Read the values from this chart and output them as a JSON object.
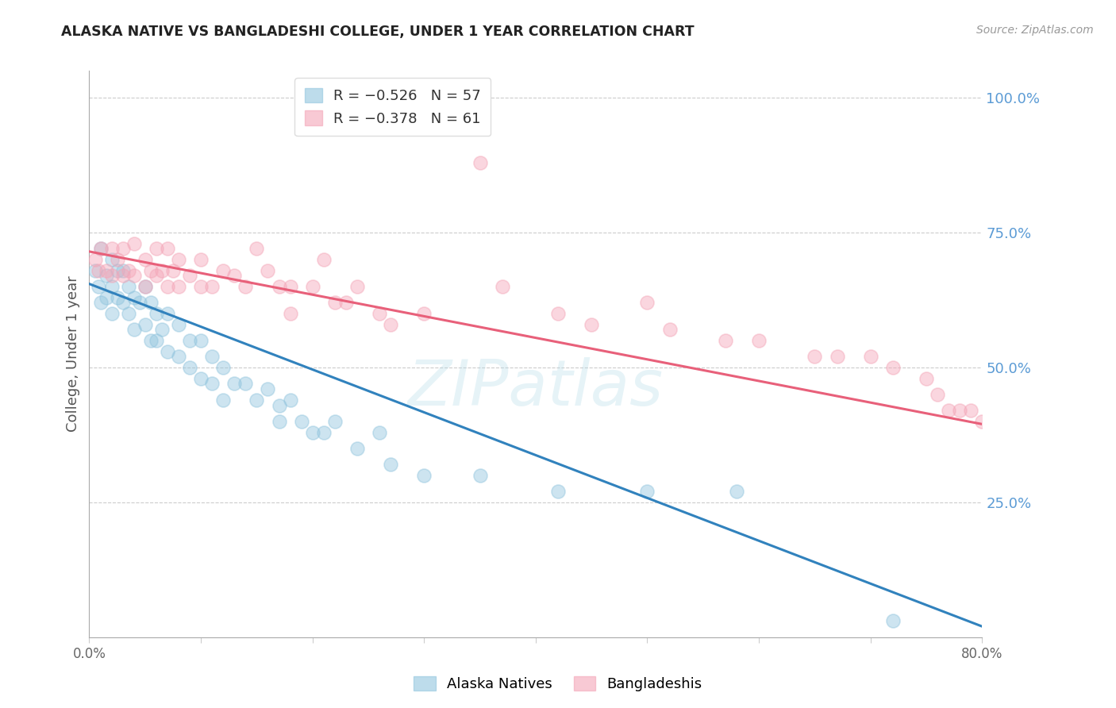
{
  "title": "ALASKA NATIVE VS BANGLADESHI COLLEGE, UNDER 1 YEAR CORRELATION CHART",
  "source": "Source: ZipAtlas.com",
  "ylabel": "College, Under 1 year",
  "xlim": [
    0.0,
    0.8
  ],
  "ylim": [
    0.0,
    1.05
  ],
  "x_tick_positions": [
    0.0,
    0.1,
    0.2,
    0.3,
    0.4,
    0.5,
    0.6,
    0.7,
    0.8
  ],
  "x_tick_labels": [
    "0.0%",
    "",
    "",
    "",
    "",
    "",
    "",
    "",
    "80.0%"
  ],
  "y_ticks_right": [
    1.0,
    0.75,
    0.5,
    0.25
  ],
  "y_tick_labels_right": [
    "100.0%",
    "75.0%",
    "50.0%",
    "25.0%"
  ],
  "watermark": "ZIPatlas",
  "blue_color": "#92c5de",
  "pink_color": "#f4a6b8",
  "blue_line_color": "#3182bd",
  "pink_line_color": "#e8607a",
  "bg_color": "#ffffff",
  "grid_color": "#cccccc",
  "right_tick_color": "#5b9bd5",
  "legend_label_blue": "R = −0.526   N = 57",
  "legend_label_pink": "R = −0.378   N = 61",
  "legend_bottom_blue": "Alaska Natives",
  "legend_bottom_pink": "Bangladeshis",
  "blue_trendline_x": [
    0.0,
    0.8
  ],
  "blue_trendline_y": [
    0.655,
    0.02
  ],
  "pink_trendline_x": [
    0.0,
    0.8
  ],
  "pink_trendline_y": [
    0.715,
    0.395
  ],
  "alaska_scatter_x": [
    0.005,
    0.008,
    0.01,
    0.01,
    0.015,
    0.015,
    0.02,
    0.02,
    0.02,
    0.025,
    0.025,
    0.03,
    0.03,
    0.035,
    0.035,
    0.04,
    0.04,
    0.045,
    0.05,
    0.05,
    0.055,
    0.055,
    0.06,
    0.06,
    0.065,
    0.07,
    0.07,
    0.08,
    0.08,
    0.09,
    0.09,
    0.1,
    0.1,
    0.11,
    0.11,
    0.12,
    0.12,
    0.13,
    0.14,
    0.15,
    0.16,
    0.17,
    0.17,
    0.18,
    0.19,
    0.2,
    0.21,
    0.22,
    0.24,
    0.26,
    0.27,
    0.3,
    0.35,
    0.42,
    0.5,
    0.58,
    0.72
  ],
  "alaska_scatter_y": [
    0.68,
    0.65,
    0.72,
    0.62,
    0.67,
    0.63,
    0.7,
    0.65,
    0.6,
    0.68,
    0.63,
    0.68,
    0.62,
    0.65,
    0.6,
    0.63,
    0.57,
    0.62,
    0.65,
    0.58,
    0.62,
    0.55,
    0.6,
    0.55,
    0.57,
    0.6,
    0.53,
    0.58,
    0.52,
    0.55,
    0.5,
    0.55,
    0.48,
    0.52,
    0.47,
    0.5,
    0.44,
    0.47,
    0.47,
    0.44,
    0.46,
    0.43,
    0.4,
    0.44,
    0.4,
    0.38,
    0.38,
    0.4,
    0.35,
    0.38,
    0.32,
    0.3,
    0.3,
    0.27,
    0.27,
    0.27,
    0.03
  ],
  "bangladeshi_scatter_x": [
    0.005,
    0.008,
    0.01,
    0.015,
    0.02,
    0.02,
    0.025,
    0.03,
    0.03,
    0.035,
    0.04,
    0.04,
    0.05,
    0.05,
    0.055,
    0.06,
    0.06,
    0.065,
    0.07,
    0.07,
    0.075,
    0.08,
    0.08,
    0.09,
    0.1,
    0.1,
    0.11,
    0.12,
    0.13,
    0.14,
    0.15,
    0.16,
    0.17,
    0.18,
    0.18,
    0.2,
    0.21,
    0.22,
    0.23,
    0.24,
    0.26,
    0.27,
    0.3,
    0.35,
    0.37,
    0.42,
    0.45,
    0.5,
    0.52,
    0.57,
    0.6,
    0.65,
    0.67,
    0.7,
    0.72,
    0.75,
    0.76,
    0.77,
    0.78,
    0.79,
    0.8
  ],
  "bangladeshi_scatter_y": [
    0.7,
    0.68,
    0.72,
    0.68,
    0.72,
    0.67,
    0.7,
    0.72,
    0.67,
    0.68,
    0.73,
    0.67,
    0.7,
    0.65,
    0.68,
    0.72,
    0.67,
    0.68,
    0.72,
    0.65,
    0.68,
    0.7,
    0.65,
    0.67,
    0.7,
    0.65,
    0.65,
    0.68,
    0.67,
    0.65,
    0.72,
    0.68,
    0.65,
    0.65,
    0.6,
    0.65,
    0.7,
    0.62,
    0.62,
    0.65,
    0.6,
    0.58,
    0.6,
    0.88,
    0.65,
    0.6,
    0.58,
    0.62,
    0.57,
    0.55,
    0.55,
    0.52,
    0.52,
    0.52,
    0.5,
    0.48,
    0.45,
    0.42,
    0.42,
    0.42,
    0.4
  ]
}
